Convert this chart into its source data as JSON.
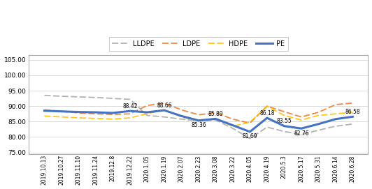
{
  "x_labels": [
    "2019.10.13",
    "2019.10.27",
    "2019.11.10",
    "2019.11.24",
    "2019.12.8",
    "2019.12.22",
    "2020.1.05",
    "2020.1.19",
    "2020.2.07",
    "2020.2.23",
    "2020.3.08",
    "2020.3.22",
    "2020.4.05",
    "2020.4.19",
    "2020.5.3",
    "2020.5.17",
    "2020.5.31",
    "2020.6.14",
    "2020.6.28"
  ],
  "PE": [
    88.5,
    88.3,
    88.1,
    88.0,
    87.8,
    88.42,
    88.0,
    88.66,
    86.8,
    85.36,
    85.89,
    83.8,
    81.69,
    86.18,
    83.55,
    82.76,
    84.2,
    85.8,
    86.58
  ],
  "LLDPE": [
    93.5,
    93.2,
    93.0,
    92.8,
    92.5,
    92.2,
    87.0,
    86.5,
    85.8,
    85.2,
    85.5,
    82.8,
    79.5,
    83.2,
    81.8,
    80.8,
    82.2,
    83.5,
    84.2
  ],
  "LDPE": [
    88.8,
    88.3,
    87.8,
    87.5,
    87.3,
    87.5,
    90.2,
    91.0,
    88.8,
    87.2,
    87.8,
    85.8,
    84.5,
    90.0,
    88.2,
    86.5,
    88.0,
    90.5,
    91.0
  ],
  "HDPE": [
    86.8,
    86.5,
    86.2,
    86.0,
    85.8,
    86.2,
    87.5,
    88.8,
    86.5,
    85.3,
    85.8,
    83.5,
    84.8,
    90.0,
    87.0,
    85.5,
    87.0,
    87.5,
    88.0
  ],
  "PE_color": "#4472C4",
  "LLDPE_color": "#AAAAAA",
  "LDPE_color": "#ED7D31",
  "HDPE_color": "#FFC000",
  "ylim": [
    74.5,
    106.5
  ],
  "yticks": [
    75.0,
    80.0,
    85.0,
    90.0,
    95.0,
    100.0,
    105.0
  ],
  "ann_above": {
    "5": "88.42",
    "7": "88.66",
    "10": "85.89",
    "13": "86.18",
    "14": "83.55",
    "18": "86.58"
  },
  "ann_below": {
    "9": "85.36",
    "12": "81.69",
    "15": "82.76"
  },
  "background": "#FFFFFF",
  "grid_color": "#CCCCCC",
  "border_color": "#AAAAAA"
}
